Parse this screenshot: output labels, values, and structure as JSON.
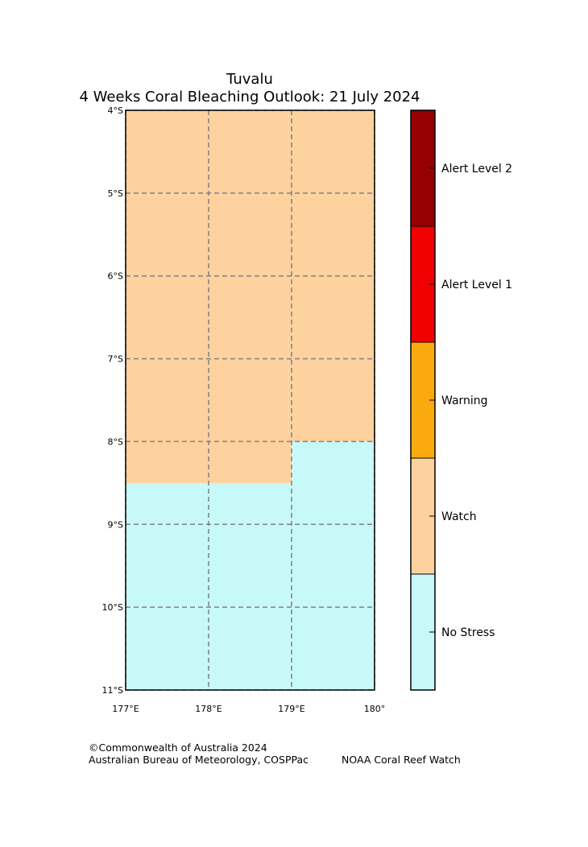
{
  "title": {
    "line1": "Tuvalu",
    "line2": "4 Weeks Coral Bleaching Outlook: 21 July 2024"
  },
  "map": {
    "lon_range": [
      177,
      180
    ],
    "lat_range": [
      -11,
      -4
    ],
    "lat_ticks": [
      {
        "value": -4,
        "label": "4°S"
      },
      {
        "value": -5,
        "label": "5°S"
      },
      {
        "value": -6,
        "label": "6°S"
      },
      {
        "value": -7,
        "label": "7°S"
      },
      {
        "value": -8,
        "label": "8°S"
      },
      {
        "value": -9,
        "label": "9°S"
      },
      {
        "value": -10,
        "label": "10°S"
      },
      {
        "value": -11,
        "label": "11°S"
      }
    ],
    "lon_ticks": [
      {
        "value": 177,
        "label": "177°E"
      },
      {
        "value": 178,
        "label": "178°E"
      },
      {
        "value": 179,
        "label": "179°E"
      },
      {
        "value": 180,
        "label": "180°"
      }
    ],
    "gridline_color": "#808080",
    "regions": [
      {
        "level": "Watch",
        "lon": [
          177,
          180
        ],
        "lat": [
          -8,
          -4
        ]
      },
      {
        "level": "Watch",
        "lon": [
          177,
          179
        ],
        "lat": [
          -8.5,
          -8
        ]
      },
      {
        "level": "No Stress",
        "lon": [
          177,
          180
        ],
        "lat": [
          -11,
          -8.5
        ]
      },
      {
        "level": "No Stress",
        "lon": [
          179,
          180
        ],
        "lat": [
          -8.5,
          -8
        ]
      }
    ]
  },
  "legend": {
    "levels": [
      {
        "label": "No Stress",
        "color": "#c8f9f9"
      },
      {
        "label": "Watch",
        "color": "#fed29f"
      },
      {
        "label": "Warning",
        "color": "#faaa0f"
      },
      {
        "label": "Alert Level 1",
        "color": "#f00000"
      },
      {
        "label": "Alert Level 2",
        "color": "#960000"
      }
    ]
  },
  "footer": {
    "copyright": "©Commonwealth of Australia 2024",
    "bom": "Australian Bureau of Meteorology, COSPPac",
    "noaa": "NOAA Coral Reef Watch"
  }
}
